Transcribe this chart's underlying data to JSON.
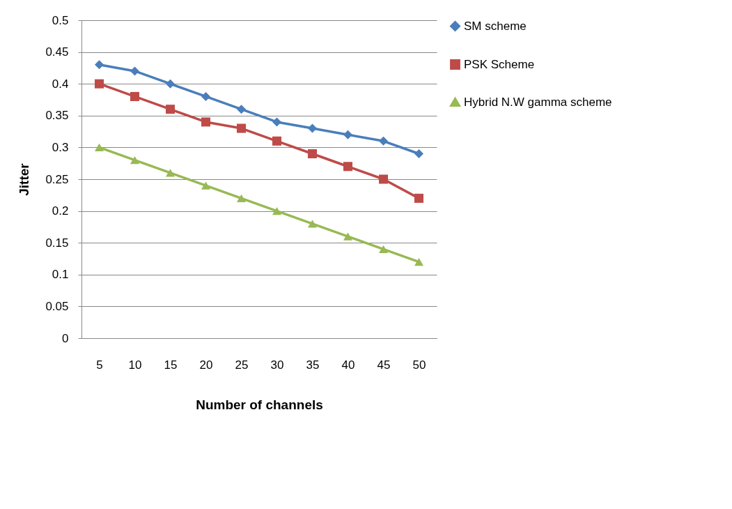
{
  "chart_data": {
    "type": "line",
    "xlabel": "Number of channels",
    "ylabel": "Jitter",
    "categories": [
      "5",
      "10",
      "15",
      "20",
      "25",
      "30",
      "35",
      "40",
      "45",
      "50"
    ],
    "series": [
      {
        "name": "SM scheme",
        "color": "#4a7ebb",
        "marker": "diamond",
        "values": [
          0.43,
          0.42,
          0.4,
          0.38,
          0.36,
          0.34,
          0.33,
          0.32,
          0.31,
          0.29
        ]
      },
      {
        "name": "PSK Scheme",
        "color": "#be4b48",
        "marker": "square",
        "values": [
          0.4,
          0.38,
          0.36,
          0.34,
          0.33,
          0.31,
          0.29,
          0.27,
          0.25,
          0.22
        ]
      },
      {
        "name": "Hybrid N.W gamma scheme",
        "color": "#98b954",
        "marker": "triangle",
        "values": [
          0.3,
          0.28,
          0.26,
          0.24,
          0.22,
          0.2,
          0.18,
          0.16,
          0.14,
          0.12
        ]
      }
    ],
    "ylim": [
      0,
      0.5
    ],
    "yticks": [
      0,
      0.05,
      0.1,
      0.15,
      0.2,
      0.25,
      0.3,
      0.35,
      0.4,
      0.45,
      0.5
    ],
    "grid": "y",
    "legend": "right"
  }
}
